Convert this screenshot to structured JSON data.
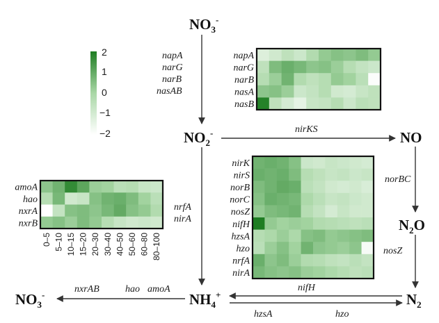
{
  "compounds": {
    "no3_top": {
      "base": "NO",
      "sub": "3",
      "sup": "-"
    },
    "no2": {
      "base": "NO",
      "sub": "2",
      "sup": "-"
    },
    "no": {
      "base": "NO"
    },
    "n2o": {
      "base": "N",
      "sub": "2",
      "tail": "O"
    },
    "n2": {
      "base": "N",
      "sub": "2"
    },
    "nh4": {
      "base": "NH",
      "sub": "4",
      "sup": "+"
    },
    "no3_left": {
      "base": "NO",
      "sub": "3",
      "sup": "-"
    }
  },
  "arrow_labels": {
    "no3_no2_genes": [
      "napA",
      "narG",
      "narB",
      "nasAB"
    ],
    "no2_no": "nirKS",
    "no_n2o": "norBC",
    "n2o_n2": "nosZ",
    "no2_nh4_genes": [
      "nrfA",
      "nirA"
    ],
    "n2_nh4_upper": "nifH",
    "nh4_n2_left": "hzsA",
    "nh4_n2_right": "hzo",
    "nh4_no3": [
      "nxrAB",
      "hao",
      "amoA"
    ]
  },
  "colorbar": {
    "ticks": [
      "2",
      "1",
      "0",
      "−1",
      "−2"
    ],
    "color_max": "#1e7d22",
    "color_mid": "#a9d7a6",
    "color_min": "#ffffff"
  },
  "heatmaps": {
    "top": {
      "rows": [
        "napA",
        "narG",
        "narB",
        "nasA",
        "nasB"
      ],
      "values": [
        [
          -1.2,
          -0.9,
          -0.5,
          -0.8,
          -0.2,
          0.3,
          0.5,
          0.4,
          0.6,
          0.3
        ],
        [
          -0.5,
          0.6,
          0.9,
          0.7,
          0.4,
          0.5,
          0.2,
          -0.3,
          -0.6,
          -0.8
        ],
        [
          -0.3,
          0.2,
          0.8,
          -0.2,
          -0.5,
          -0.3,
          0.3,
          0.1,
          -0.4,
          -1.9
        ],
        [
          0.4,
          0.5,
          0.2,
          -0.8,
          -0.6,
          -0.3,
          -0.9,
          -1.0,
          -0.7,
          -0.5
        ],
        [
          1.9,
          -0.5,
          -1.0,
          -1.4,
          -0.7,
          -0.6,
          -0.3,
          -0.8,
          -0.4,
          -0.5
        ]
      ]
    },
    "middle": {
      "rows": [
        "nirK",
        "nirS",
        "norB",
        "norC",
        "nosZ",
        "nifH",
        "hzsA",
        "hzo",
        "nrfA",
        "nirA"
      ],
      "values": [
        [
          0.8,
          0.9,
          0.8,
          0.5,
          -0.8,
          -0.9,
          -0.7,
          -0.8,
          -0.9,
          -1.0
        ],
        [
          0.9,
          0.8,
          0.9,
          0.6,
          -0.3,
          -0.5,
          -0.7,
          -0.6,
          -0.8,
          -0.7
        ],
        [
          0.6,
          0.8,
          1.0,
          0.9,
          -0.4,
          -0.6,
          -0.9,
          -1.0,
          -0.9,
          -1.1
        ],
        [
          0.5,
          0.9,
          0.8,
          0.7,
          -0.1,
          -0.4,
          -0.7,
          -0.6,
          -0.8,
          -0.9
        ],
        [
          0.3,
          0.6,
          0.7,
          0.8,
          -0.3,
          -0.6,
          -1.0,
          -0.7,
          -0.9,
          -0.9
        ],
        [
          2.0,
          0.3,
          0.1,
          0.2,
          0.1,
          -0.2,
          -0.3,
          -0.4,
          -0.5,
          -0.4
        ],
        [
          -0.3,
          -0.1,
          0.2,
          -0.1,
          0.5,
          0.6,
          0.3,
          0.4,
          0.5,
          0.6
        ],
        [
          -0.4,
          0.2,
          0.5,
          0.1,
          0.8,
          0.4,
          0.3,
          0.2,
          0.4,
          -1.8
        ],
        [
          0.9,
          0.4,
          0.6,
          0.2,
          -0.2,
          -0.3,
          -0.5,
          -0.6,
          -0.4,
          -0.6
        ],
        [
          0.7,
          0.5,
          0.4,
          0.5,
          0.2,
          0.1,
          -0.1,
          -0.3,
          -0.5,
          -0.4
        ]
      ]
    },
    "left": {
      "rows": [
        "amoA",
        "hao",
        "nxrA",
        "nxrB"
      ],
      "columns": [
        "0–5",
        "5–10",
        "10–15",
        "15–20",
        "20–30",
        "30–40",
        "40–50",
        "50–60",
        "60–80",
        "80–100"
      ],
      "values": [
        [
          0.4,
          0.8,
          1.7,
          1.1,
          0.2,
          0.1,
          -0.4,
          -0.3,
          -0.7,
          -0.8
        ],
        [
          -0.3,
          0.7,
          -0.9,
          -0.7,
          0.5,
          0.8,
          0.9,
          0.6,
          0.1,
          -0.4
        ],
        [
          -2.0,
          -0.6,
          0.5,
          0.6,
          0.4,
          0.7,
          1.0,
          0.5,
          0.3,
          -0.2
        ],
        [
          0.3,
          0.5,
          0.2,
          0.6,
          0.3,
          -0.3,
          -0.7,
          -0.9,
          -0.8,
          -0.9
        ]
      ]
    }
  }
}
